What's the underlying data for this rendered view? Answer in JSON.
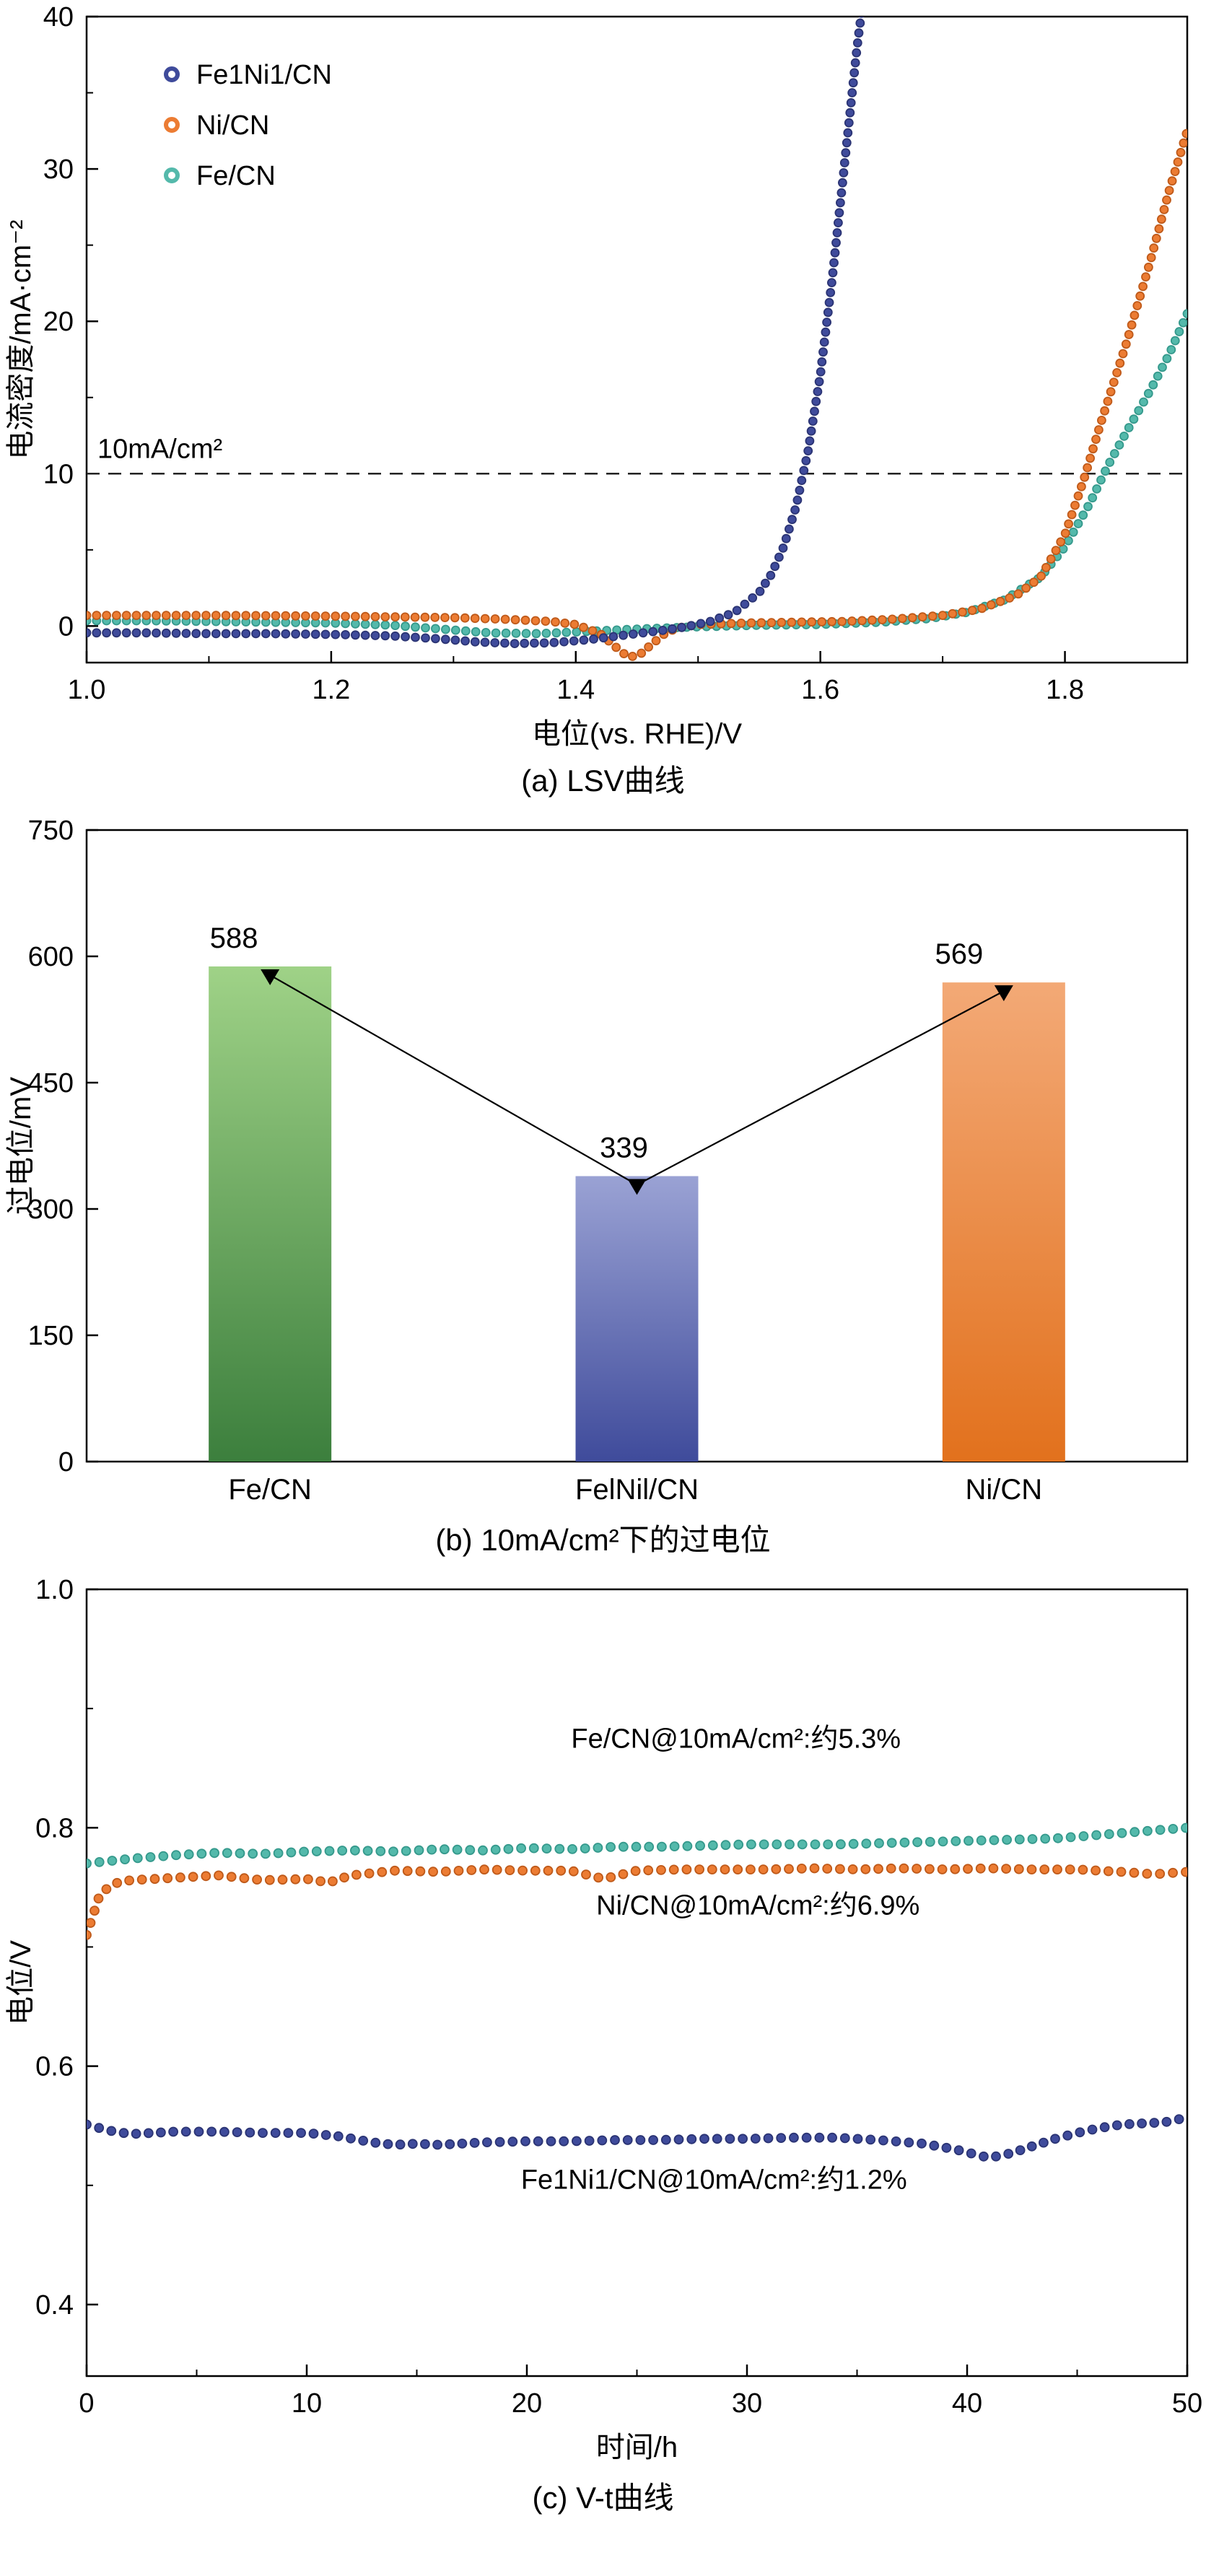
{
  "colors": {
    "navy": "#3f4b9b",
    "orange": "#ec7c33",
    "teal": "#54b9ab",
    "axis": "#000000",
    "reference_line": "#222222"
  },
  "chart_data": [
    {
      "id": "panel-a",
      "type": "scatter",
      "caption": "(a) LSV曲线",
      "xlabel": "电位(vs. RHE)/V",
      "ylabel": "电流密度/mA·cm⁻²",
      "xlim": [
        1.0,
        1.9
      ],
      "ylim": [
        -2.4,
        40
      ],
      "xticks": [
        1.0,
        1.2,
        1.4,
        1.6,
        1.8
      ],
      "xtick_labels": [
        "1.0",
        "1.2",
        "1.4",
        "1.6",
        "1.8"
      ],
      "yticks": [
        0,
        10,
        20,
        30,
        40
      ],
      "ytick_labels": [
        "0",
        "10",
        "20",
        "30",
        "40"
      ],
      "minor": true,
      "grid": false,
      "legend_position": "top-left",
      "reference_line": {
        "y": 10,
        "label": "10mA/cm²"
      },
      "series": [
        {
          "name": "Fe1Ni1/CN",
          "color": "#3f4b9b",
          "edge": "#2b3474",
          "points": [
            [
              1.0,
              -0.45
            ],
            [
              1.05,
              -0.45
            ],
            [
              1.1,
              -0.5
            ],
            [
              1.15,
              -0.5
            ],
            [
              1.2,
              -0.55
            ],
            [
              1.25,
              -0.65
            ],
            [
              1.29,
              -0.85
            ],
            [
              1.32,
              -1.05
            ],
            [
              1.35,
              -1.15
            ],
            [
              1.38,
              -1.1
            ],
            [
              1.41,
              -0.9
            ],
            [
              1.44,
              -0.6
            ],
            [
              1.47,
              -0.3
            ],
            [
              1.49,
              -0.05
            ],
            [
              1.51,
              0.3
            ],
            [
              1.53,
              0.9
            ],
            [
              1.55,
              2.2
            ],
            [
              1.56,
              3.4
            ],
            [
              1.57,
              5.2
            ],
            [
              1.58,
              7.8
            ],
            [
              1.59,
              11.5
            ],
            [
              1.6,
              16.5
            ],
            [
              1.61,
              23
            ],
            [
              1.62,
              30.5
            ],
            [
              1.63,
              38
            ],
            [
              1.638,
              43
            ]
          ]
        },
        {
          "name": "Ni/CN",
          "color": "#ec7c33",
          "edge": "#bf5a1a",
          "points": [
            [
              1.0,
              0.7
            ],
            [
              1.05,
              0.7
            ],
            [
              1.1,
              0.7
            ],
            [
              1.15,
              0.68
            ],
            [
              1.2,
              0.65
            ],
            [
              1.25,
              0.6
            ],
            [
              1.3,
              0.55
            ],
            [
              1.34,
              0.45
            ],
            [
              1.38,
              0.3
            ],
            [
              1.4,
              0.1
            ],
            [
              1.42,
              -0.5
            ],
            [
              1.433,
              -1.4
            ],
            [
              1.443,
              -2.05
            ],
            [
              1.452,
              -1.9
            ],
            [
              1.462,
              -1.2
            ],
            [
              1.472,
              -0.55
            ],
            [
              1.482,
              -0.15
            ],
            [
              1.5,
              0.1
            ],
            [
              1.54,
              0.2
            ],
            [
              1.58,
              0.25
            ],
            [
              1.62,
              0.3
            ],
            [
              1.66,
              0.45
            ],
            [
              1.7,
              0.7
            ],
            [
              1.73,
              1.1
            ],
            [
              1.76,
              2.0
            ],
            [
              1.78,
              3.2
            ],
            [
              1.8,
              6.0
            ],
            [
              1.815,
              9.5
            ],
            [
              1.83,
              13.5
            ],
            [
              1.85,
              18.5
            ],
            [
              1.87,
              24
            ],
            [
              1.885,
              28.5
            ],
            [
              1.9,
              32.5
            ]
          ]
        },
        {
          "name": "Fe/CN",
          "color": "#54b9ab",
          "edge": "#35998c",
          "points": [
            [
              1.0,
              0.35
            ],
            [
              1.05,
              0.35
            ],
            [
              1.1,
              0.3
            ],
            [
              1.15,
              0.25
            ],
            [
              1.2,
              0.2
            ],
            [
              1.25,
              0.05
            ],
            [
              1.29,
              -0.2
            ],
            [
              1.33,
              -0.45
            ],
            [
              1.37,
              -0.5
            ],
            [
              1.41,
              -0.35
            ],
            [
              1.45,
              -0.2
            ],
            [
              1.5,
              -0.05
            ],
            [
              1.55,
              0.05
            ],
            [
              1.6,
              0.1
            ],
            [
              1.65,
              0.25
            ],
            [
              1.69,
              0.5
            ],
            [
              1.72,
              0.9
            ],
            [
              1.75,
              1.7
            ],
            [
              1.78,
              3.2
            ],
            [
              1.8,
              5.2
            ],
            [
              1.82,
              8.0
            ],
            [
              1.835,
              10.5
            ],
            [
              1.85,
              12.7
            ],
            [
              1.87,
              15.5
            ],
            [
              1.885,
              17.8
            ],
            [
              1.9,
              20.5
            ]
          ]
        }
      ]
    },
    {
      "id": "panel-b",
      "type": "bar",
      "caption": "(b) 10mA/cm²下的过电位",
      "ylabel": "过电位/mV",
      "categories": [
        "Fe/CN",
        "FelNil/CN",
        "Ni/CN"
      ],
      "values": [
        588,
        339,
        569
      ],
      "value_labels": [
        "588",
        "339",
        "569"
      ],
      "bar_gradients": [
        [
          "#9fd287",
          "#3c7f3d"
        ],
        [
          "#9aa2d4",
          "#3f4b9b"
        ],
        [
          "#f3a976",
          "#e2711d"
        ]
      ],
      "xlim": [
        0,
        1
      ],
      "ylim": [
        0,
        750
      ],
      "yticks": [
        0,
        150,
        300,
        450,
        600,
        750
      ],
      "ytick_labels": [
        "0",
        "150",
        "300",
        "450",
        "600",
        "750"
      ],
      "minor": false,
      "grid": false
    },
    {
      "id": "panel-c",
      "type": "scatter",
      "caption": "(c) V-t曲线",
      "xlabel": "时间/h",
      "ylabel": "电位/V",
      "xlim": [
        0,
        50
      ],
      "ylim": [
        0.34,
        1.0
      ],
      "xticks": [
        0,
        10,
        20,
        30,
        40,
        50
      ],
      "xtick_labels": [
        "0",
        "10",
        "20",
        "30",
        "40",
        "50"
      ],
      "yticks": [
        0.4,
        0.6,
        0.8,
        1.0
      ],
      "ytick_labels": [
        "0.4",
        "0.6",
        "0.8",
        "1.0"
      ],
      "minor": true,
      "grid": false,
      "annotations": [
        {
          "text": "Fe/CN@10mA/cm²:约5.3%",
          "color": "#54b9ab",
          "x": 29.5,
          "y": 0.875
        },
        {
          "text": "Ni/CN@10mA/cm²:约6.9%",
          "color": "#ec7c33",
          "x": 30.5,
          "y": 0.735
        },
        {
          "text": "Fe1Ni1/CN@10mA/cm²:约1.2%",
          "color": "#3f4b9b",
          "x": 28.5,
          "y": 0.505
        }
      ],
      "series": [
        {
          "name": "Fe/CN",
          "color": "#54b9ab",
          "edge": "#35998c",
          "points": [
            [
              0,
              0.77
            ],
            [
              2,
              0.774
            ],
            [
              4,
              0.777
            ],
            [
              6,
              0.779
            ],
            [
              8,
              0.778
            ],
            [
              10,
              0.78
            ],
            [
              12,
              0.781
            ],
            [
              14,
              0.78
            ],
            [
              16,
              0.782
            ],
            [
              18,
              0.781
            ],
            [
              20,
              0.783
            ],
            [
              22,
              0.782
            ],
            [
              24,
              0.784
            ],
            [
              26,
              0.784
            ],
            [
              28,
              0.785
            ],
            [
              30,
              0.786
            ],
            [
              32,
              0.786
            ],
            [
              34,
              0.786
            ],
            [
              36,
              0.787
            ],
            [
              38,
              0.788
            ],
            [
              40,
              0.789
            ],
            [
              42,
              0.79
            ],
            [
              44,
              0.791
            ],
            [
              46,
              0.794
            ],
            [
              48,
              0.797
            ],
            [
              50,
              0.8
            ]
          ]
        },
        {
          "name": "Ni/CN",
          "color": "#ec7c33",
          "edge": "#bf5a1a",
          "points": [
            [
              0,
              0.71
            ],
            [
              0.6,
              0.744
            ],
            [
              1.2,
              0.753
            ],
            [
              2,
              0.756
            ],
            [
              4,
              0.758
            ],
            [
              6,
              0.76
            ],
            [
              8,
              0.756
            ],
            [
              10,
              0.757
            ],
            [
              11,
              0.754
            ],
            [
              12,
              0.76
            ],
            [
              14,
              0.764
            ],
            [
              16,
              0.763
            ],
            [
              18,
              0.765
            ],
            [
              20,
              0.764
            ],
            [
              22,
              0.764
            ],
            [
              23.5,
              0.757
            ],
            [
              25,
              0.764
            ],
            [
              27,
              0.765
            ],
            [
              29,
              0.765
            ],
            [
              31,
              0.765
            ],
            [
              33,
              0.766
            ],
            [
              35,
              0.765
            ],
            [
              37,
              0.766
            ],
            [
              39,
              0.765
            ],
            [
              41,
              0.766
            ],
            [
              43,
              0.765
            ],
            [
              45,
              0.765
            ],
            [
              47,
              0.763
            ],
            [
              48.5,
              0.761
            ],
            [
              50,
              0.763
            ]
          ]
        },
        {
          "name": "Fe1Ni1/CN",
          "color": "#3f4b9b",
          "edge": "#2b3474",
          "points": [
            [
              0,
              0.551
            ],
            [
              1,
              0.546
            ],
            [
              2,
              0.543
            ],
            [
              3,
              0.544
            ],
            [
              4,
              0.545
            ],
            [
              6,
              0.545
            ],
            [
              8,
              0.544
            ],
            [
              10,
              0.544
            ],
            [
              11.5,
              0.541
            ],
            [
              13,
              0.536
            ],
            [
              14,
              0.534
            ],
            [
              15,
              0.535
            ],
            [
              16,
              0.534
            ],
            [
              17,
              0.535
            ],
            [
              18,
              0.536
            ],
            [
              20,
              0.537
            ],
            [
              22,
              0.537
            ],
            [
              24,
              0.538
            ],
            [
              26,
              0.538
            ],
            [
              28,
              0.539
            ],
            [
              30,
              0.539
            ],
            [
              32,
              0.54
            ],
            [
              34,
              0.54
            ],
            [
              36,
              0.538
            ],
            [
              38,
              0.535
            ],
            [
              39.5,
              0.53
            ],
            [
              41,
              0.523
            ],
            [
              42,
              0.527
            ],
            [
              43,
              0.533
            ],
            [
              44,
              0.539
            ],
            [
              45,
              0.544
            ],
            [
              46,
              0.548
            ],
            [
              47,
              0.551
            ],
            [
              48,
              0.552
            ],
            [
              49,
              0.553
            ],
            [
              50,
              0.557
            ]
          ]
        }
      ]
    }
  ]
}
